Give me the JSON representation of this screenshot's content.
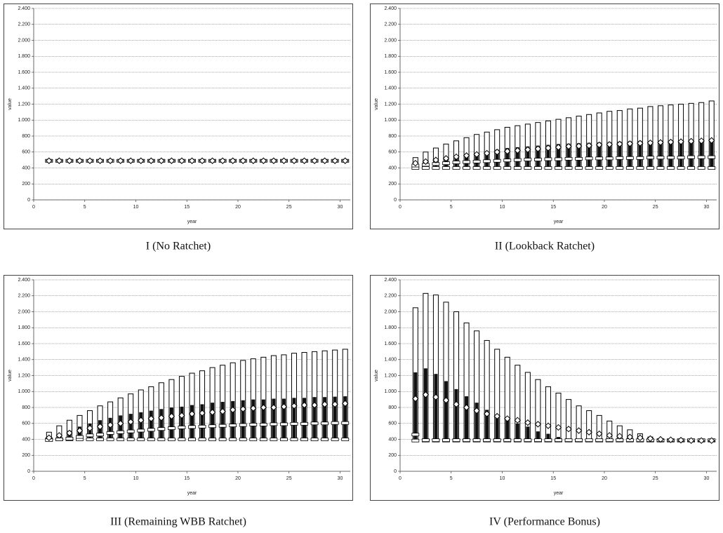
{
  "chart_data": [
    {
      "type": "candlestick",
      "title": "I (No Ratchet)",
      "xlabel": "year",
      "ylabel": "value",
      "xlim": [
        0,
        31
      ],
      "ylim": [
        0,
        2400
      ],
      "grid": true,
      "xticks": [
        0,
        5,
        10,
        15,
        20,
        25,
        30
      ],
      "yticks": [
        0,
        200,
        400,
        600,
        800,
        {
          "value": 1000,
          "label": "1.000"
        },
        {
          "value": 1200,
          "label": "1.200"
        },
        {
          "value": 1400,
          "label": "1.400"
        },
        {
          "value": 1600,
          "label": "1.600"
        },
        {
          "value": 1800,
          "label": "1.800"
        },
        {
          "value": 2000,
          "label": "2.000"
        },
        {
          "value": 2200,
          "label": "2.200"
        },
        {
          "value": 2400,
          "label": "2.400"
        }
      ],
      "x": [
        1.5,
        2.5,
        3.5,
        4.5,
        5.5,
        6.5,
        7.5,
        8.5,
        9.5,
        10.5,
        11.5,
        12.5,
        13.5,
        14.5,
        15.5,
        16.5,
        17.5,
        18.5,
        19.5,
        20.5,
        21.5,
        22.5,
        23.5,
        24.5,
        25.5,
        26.5,
        27.5,
        28.5,
        29.5,
        30.5
      ],
      "high": [
        490,
        490,
        490,
        490,
        490,
        490,
        490,
        490,
        490,
        490,
        490,
        490,
        490,
        490,
        490,
        490,
        490,
        490,
        490,
        490,
        490,
        490,
        490,
        490,
        490,
        490,
        490,
        490,
        490,
        490
      ],
      "box_top": [
        490,
        490,
        490,
        490,
        490,
        490,
        490,
        490,
        490,
        490,
        490,
        490,
        490,
        490,
        490,
        490,
        490,
        490,
        490,
        490,
        490,
        490,
        490,
        490,
        490,
        490,
        490,
        490,
        490,
        490
      ],
      "mean": [
        490,
        490,
        490,
        490,
        490,
        490,
        490,
        490,
        490,
        490,
        490,
        490,
        490,
        490,
        490,
        490,
        490,
        490,
        490,
        490,
        490,
        490,
        490,
        490,
        490,
        490,
        490,
        490,
        490,
        490
      ],
      "median": [
        490,
        490,
        490,
        490,
        490,
        490,
        490,
        490,
        490,
        490,
        490,
        490,
        490,
        490,
        490,
        490,
        490,
        490,
        490,
        490,
        490,
        490,
        490,
        490,
        490,
        490,
        490,
        490,
        490,
        490
      ],
      "low": [
        490,
        490,
        490,
        490,
        490,
        490,
        490,
        490,
        490,
        490,
        490,
        490,
        490,
        490,
        490,
        490,
        490,
        490,
        490,
        490,
        490,
        490,
        490,
        490,
        490,
        490,
        490,
        490,
        490,
        490
      ]
    },
    {
      "type": "candlestick",
      "title": "II (Lookback Ratchet)",
      "xlabel": "year",
      "ylabel": "value",
      "xlim": [
        0,
        31
      ],
      "ylim": [
        0,
        2400
      ],
      "grid": true,
      "xticks": [
        0,
        5,
        10,
        15,
        20,
        25,
        30
      ],
      "yticks": [
        0,
        200,
        400,
        600,
        800,
        {
          "value": 1000,
          "label": "1.000"
        },
        {
          "value": 1200,
          "label": "1.200"
        },
        {
          "value": 1400,
          "label": "1.400"
        },
        {
          "value": 1600,
          "label": "1.600"
        },
        {
          "value": 1800,
          "label": "1.800"
        },
        {
          "value": 2000,
          "label": "2.000"
        },
        {
          "value": 2200,
          "label": "2.200"
        },
        {
          "value": 2400,
          "label": "2.400"
        }
      ],
      "x": [
        1.5,
        2.5,
        3.5,
        4.5,
        5.5,
        6.5,
        7.5,
        8.5,
        9.5,
        10.5,
        11.5,
        12.5,
        13.5,
        14.5,
        15.5,
        16.5,
        17.5,
        18.5,
        19.5,
        20.5,
        21.5,
        22.5,
        23.5,
        24.5,
        25.5,
        26.5,
        27.5,
        28.5,
        29.5,
        30.5
      ],
      "high": [
        530,
        600,
        650,
        700,
        740,
        780,
        820,
        850,
        880,
        910,
        930,
        950,
        970,
        990,
        1010,
        1030,
        1050,
        1070,
        1090,
        1110,
        1120,
        1140,
        1150,
        1170,
        1180,
        1190,
        1200,
        1210,
        1220,
        1240
      ],
      "box_top": [
        440,
        470,
        500,
        530,
        550,
        570,
        590,
        610,
        630,
        650,
        660,
        670,
        680,
        690,
        700,
        705,
        710,
        715,
        720,
        725,
        730,
        735,
        740,
        740,
        745,
        750,
        750,
        755,
        760,
        765
      ],
      "mean": [
        460,
        480,
        500,
        520,
        540,
        555,
        570,
        585,
        600,
        610,
        620,
        630,
        640,
        650,
        660,
        670,
        675,
        680,
        690,
        695,
        700,
        705,
        710,
        715,
        720,
        725,
        730,
        735,
        740,
        745
      ],
      "median": [
        430,
        440,
        450,
        460,
        470,
        475,
        480,
        485,
        490,
        495,
        500,
        505,
        505,
        510,
        510,
        515,
        515,
        520,
        520,
        520,
        525,
        525,
        525,
        530,
        530,
        530,
        530,
        535,
        535,
        535
      ],
      "low": [
        400,
        400,
        400,
        400,
        400,
        400,
        400,
        400,
        400,
        400,
        400,
        400,
        400,
        400,
        400,
        400,
        400,
        400,
        400,
        400,
        400,
        400,
        400,
        400,
        400,
        400,
        400,
        400,
        400,
        400
      ]
    },
    {
      "type": "candlestick",
      "title": "III (Remaining WBB Ratchet)",
      "xlabel": "year",
      "ylabel": "value",
      "xlim": [
        0,
        31
      ],
      "ylim": [
        0,
        2400
      ],
      "grid": true,
      "xticks": [
        0,
        5,
        10,
        15,
        20,
        25,
        30
      ],
      "yticks": [
        0,
        200,
        400,
        600,
        800,
        {
          "value": 1000,
          "label": "1.000"
        },
        {
          "value": 1200,
          "label": "1.200"
        },
        {
          "value": 1400,
          "label": "1.400"
        },
        {
          "value": 1600,
          "label": "1.600"
        },
        {
          "value": 1800,
          "label": "1.800"
        },
        {
          "value": 2000,
          "label": "2.000"
        },
        {
          "value": 2200,
          "label": "2.200"
        },
        {
          "value": 2400,
          "label": "2.400"
        }
      ],
      "x": [
        1.5,
        2.5,
        3.5,
        4.5,
        5.5,
        6.5,
        7.5,
        8.5,
        9.5,
        10.5,
        11.5,
        12.5,
        13.5,
        14.5,
        15.5,
        16.5,
        17.5,
        18.5,
        19.5,
        20.5,
        21.5,
        22.5,
        23.5,
        24.5,
        25.5,
        26.5,
        27.5,
        28.5,
        29.5,
        30.5
      ],
      "high": [
        490,
        570,
        640,
        700,
        760,
        820,
        870,
        920,
        970,
        1020,
        1060,
        1110,
        1150,
        1190,
        1230,
        1260,
        1300,
        1330,
        1360,
        1390,
        1410,
        1430,
        1450,
        1460,
        1480,
        1490,
        1500,
        1510,
        1520,
        1530
      ],
      "box_top": [
        420,
        460,
        510,
        560,
        600,
        640,
        670,
        700,
        720,
        740,
        760,
        780,
        800,
        810,
        830,
        840,
        860,
        870,
        880,
        890,
        900,
        900,
        910,
        910,
        920,
        920,
        930,
        930,
        935,
        940
      ],
      "mean": [
        420,
        450,
        480,
        510,
        540,
        560,
        580,
        600,
        620,
        640,
        660,
        670,
        690,
        700,
        720,
        730,
        740,
        750,
        770,
        780,
        790,
        800,
        800,
        810,
        820,
        830,
        830,
        840,
        840,
        850
      ],
      "median": [
        390,
        400,
        410,
        430,
        450,
        460,
        480,
        490,
        500,
        510,
        520,
        530,
        540,
        550,
        555,
        560,
        565,
        570,
        575,
        580,
        585,
        585,
        590,
        590,
        595,
        595,
        600,
        600,
        605,
        605
      ],
      "low": [
        400,
        400,
        400,
        400,
        400,
        400,
        400,
        400,
        400,
        400,
        400,
        400,
        400,
        400,
        400,
        400,
        400,
        400,
        400,
        400,
        400,
        400,
        400,
        400,
        400,
        400,
        400,
        400,
        400,
        400
      ]
    },
    {
      "type": "candlestick",
      "title": "IV (Performance Bonus)",
      "xlabel": "year",
      "ylabel": "value",
      "xlim": [
        0,
        31
      ],
      "ylim": [
        0,
        2400
      ],
      "grid": true,
      "xticks": [
        0,
        5,
        10,
        15,
        20,
        25,
        30
      ],
      "yticks": [
        0,
        200,
        400,
        600,
        800,
        {
          "value": 1000,
          "label": "1.000"
        },
        {
          "value": 1200,
          "label": "1.200"
        },
        {
          "value": 1400,
          "label": "1.400"
        },
        {
          "value": 1600,
          "label": "1.600"
        },
        {
          "value": 1800,
          "label": "1.800"
        },
        {
          "value": 2000,
          "label": "2.000"
        },
        {
          "value": 2200,
          "label": "2.200"
        },
        {
          "value": 2400,
          "label": "2.400"
        }
      ],
      "x": [
        1.5,
        2.5,
        3.5,
        4.5,
        5.5,
        6.5,
        7.5,
        8.5,
        9.5,
        10.5,
        11.5,
        12.5,
        13.5,
        14.5,
        15.5,
        16.5,
        17.5,
        18.5,
        19.5,
        20.5,
        21.5,
        22.5,
        23.5,
        24.5,
        25.5,
        26.5,
        27.5,
        28.5,
        29.5,
        30.5
      ],
      "high": [
        2050,
        2230,
        2210,
        2120,
        2000,
        1860,
        1760,
        1640,
        1530,
        1430,
        1330,
        1240,
        1150,
        1060,
        980,
        900,
        820,
        760,
        700,
        630,
        570,
        520,
        470,
        430,
        410,
        400,
        395,
        390,
        390,
        390
      ],
      "box_top": [
        1240,
        1290,
        1220,
        1130,
        1030,
        940,
        860,
        770,
        700,
        640,
        600,
        560,
        500,
        470,
        430,
        410,
        400,
        390,
        390,
        390,
        390,
        390,
        390,
        390,
        390,
        390,
        390,
        390,
        390,
        390
      ],
      "mean": [
        910,
        960,
        930,
        890,
        840,
        800,
        760,
        720,
        690,
        660,
        640,
        610,
        590,
        570,
        550,
        530,
        510,
        490,
        470,
        450,
        440,
        430,
        420,
        410,
        400,
        395,
        390,
        385,
        385,
        385
      ],
      "median": [
        460,
        390,
        390,
        390,
        390,
        390,
        390,
        390,
        390,
        390,
        390,
        390,
        390,
        390,
        390,
        390,
        390,
        390,
        390,
        390,
        390,
        390,
        390,
        390,
        390,
        390,
        390,
        390,
        390,
        390
      ],
      "low": [
        385,
        385,
        385,
        385,
        385,
        385,
        385,
        385,
        385,
        385,
        385,
        385,
        385,
        385,
        385,
        385,
        385,
        385,
        385,
        385,
        385,
        385,
        385,
        385,
        385,
        385,
        385,
        385,
        385,
        385
      ]
    }
  ]
}
